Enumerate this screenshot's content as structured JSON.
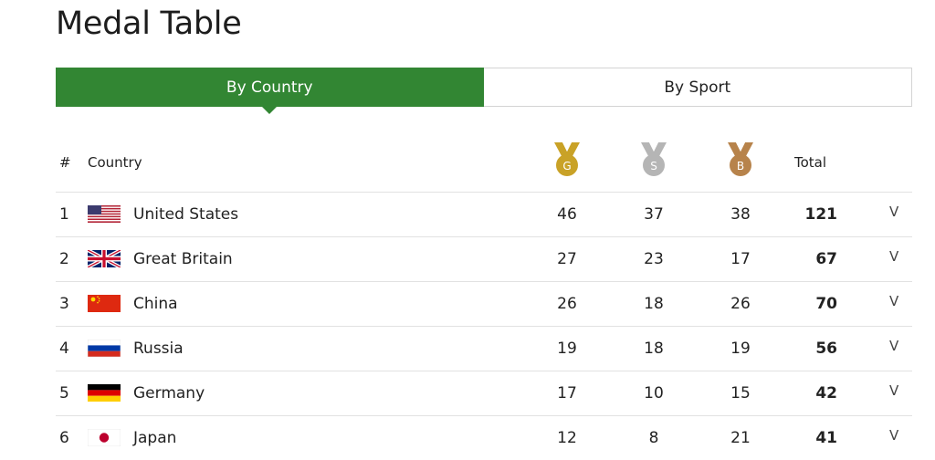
{
  "page": {
    "title": "Medal Table"
  },
  "tabs": [
    {
      "label": "By Country",
      "active": true
    },
    {
      "label": "By Sport",
      "active": false
    }
  ],
  "header": {
    "rank": "#",
    "country": "Country",
    "gold_letter": "G",
    "silver_letter": "S",
    "bronze_letter": "B",
    "total": "Total"
  },
  "colors": {
    "accent_green": "#328633",
    "gold": "#c9a227",
    "silver": "#b5b5b5",
    "bronze": "#b7834b"
  },
  "expand_icon": "V",
  "rows": [
    {
      "rank": "1",
      "flag": "flag-usa-icon",
      "country": "United States",
      "gold": "46",
      "silver": "37",
      "bronze": "38",
      "total": "121"
    },
    {
      "rank": "2",
      "flag": "flag-gbr-icon",
      "country": "Great Britain",
      "gold": "27",
      "silver": "23",
      "bronze": "17",
      "total": "67"
    },
    {
      "rank": "3",
      "flag": "flag-chn-icon",
      "country": "China",
      "gold": "26",
      "silver": "18",
      "bronze": "26",
      "total": "70"
    },
    {
      "rank": "4",
      "flag": "flag-rus-icon",
      "country": "Russia",
      "gold": "19",
      "silver": "18",
      "bronze": "19",
      "total": "56"
    },
    {
      "rank": "5",
      "flag": "flag-ger-icon",
      "country": "Germany",
      "gold": "17",
      "silver": "10",
      "bronze": "15",
      "total": "42"
    },
    {
      "rank": "6",
      "flag": "flag-jpn-icon",
      "country": "Japan",
      "gold": "12",
      "silver": "8",
      "bronze": "21",
      "total": "41"
    }
  ]
}
